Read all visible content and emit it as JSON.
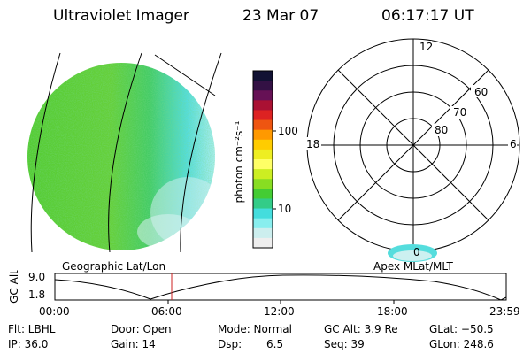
{
  "header": {
    "instrument": "Ultraviolet Imager",
    "date": "23 Mar 07",
    "time": "06:17:17 UT"
  },
  "colorbar": {
    "unit_label": "photon cm⁻²s⁻¹",
    "ticks": [
      "100",
      "10"
    ],
    "colors": [
      "#111133",
      "#331144",
      "#661155",
      "#aa1133",
      "#dd2222",
      "#ee5511",
      "#ff9900",
      "#ffcc00",
      "#eeee22",
      "#ffff66",
      "#ccee22",
      "#88dd22",
      "#44cc33",
      "#33cc88",
      "#44dddd",
      "#88eeee",
      "#cceeee",
      "#eeeeee"
    ]
  },
  "polar": {
    "labels": {
      "mlt12": "12",
      "mlt18": "18",
      "mlt6": "6",
      "mlt0": "0",
      "lat60": "60",
      "lat70": "70",
      "lat80": "80"
    }
  },
  "altitude_strip": {
    "left_title": "Geographic Lat/Lon",
    "right_title": "Apex MLat/MLT",
    "axis_label": "GC Alt",
    "y_ticks": [
      "9.0",
      "1.8"
    ],
    "x_ticks": [
      "00:00",
      "06:00",
      "12:00",
      "18:00",
      "23:59"
    ]
  },
  "status": {
    "flt": "Flt: LBHL",
    "ip": "IP: 36.0",
    "door": "Door: Open",
    "gain": "Gain: 14",
    "mode": "Mode: Normal",
    "dsp": "Dsp:",
    "dsp_value": "6.5",
    "gcalt": "GC Alt: 3.9 Re",
    "seq": "Seq: 39",
    "glat": "GLat: −50.5",
    "glon": "GLon: 248.6"
  },
  "colors": {
    "aurora_green": "#44cc33",
    "aurora_cyan": "#44dddd",
    "cursor_red": "#cc2222"
  }
}
